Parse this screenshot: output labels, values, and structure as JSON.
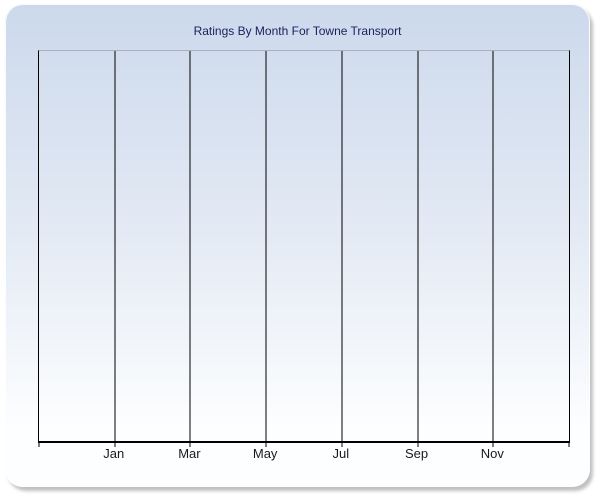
{
  "chart": {
    "title": "Ratings By Month For Towne Transport"
  },
  "chart_data": {
    "type": "line",
    "title": "Ratings By Month For Towne Transport",
    "categories": [
      "Jan",
      "Mar",
      "May",
      "Jul",
      "Sep",
      "Nov"
    ],
    "series": [],
    "xlabel": "",
    "ylabel": "",
    "y_tick_labels": [],
    "grid": "vertical-gridlines-only",
    "legend": "none",
    "notes": "Plot area is empty - no data series, points, or y-axis tick labels are rendered; x axis shows bimonthly month ticks"
  },
  "colors": {
    "panel_gradient_top": "#ccd9ec",
    "panel_gradient_bottom": "#fdfeff",
    "title_color": "#1e1e5a",
    "gridline_color": "#000000",
    "plot_top_border": "#a9b0ba",
    "axis_color": "#000000",
    "label_color": "#1a1a1a",
    "shadow_color": "#8c8c8c"
  }
}
